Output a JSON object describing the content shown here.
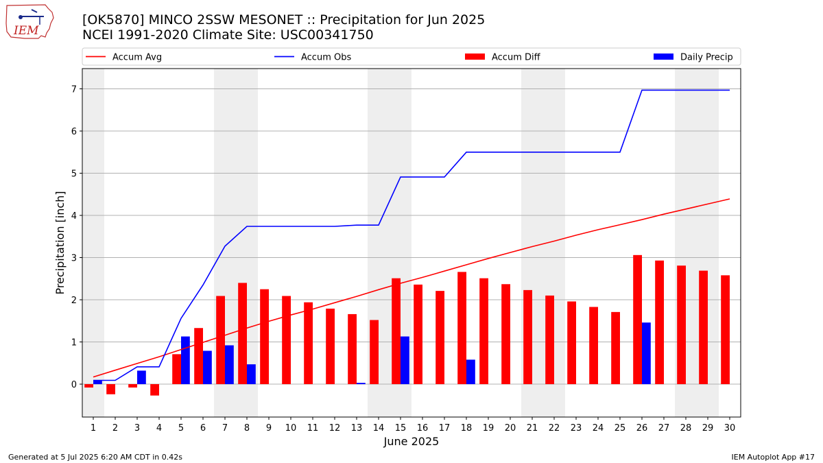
{
  "header": {
    "title_line1": "[OK5870] MINCO 2SSW MESONET :: Precipitation for Jun 2025",
    "title_line2": "NCEI 1991-2020 Climate Site: USC00341750",
    "logo_text": "IEM"
  },
  "footer": {
    "left": "Generated at 5 Jul 2025 6:20 AM CDT in 0.42s",
    "right": "IEM Autoplot App #17"
  },
  "colors": {
    "avg": "#ff0000",
    "obs": "#0000ff",
    "diff": "#ff0000",
    "daily": "#0000ff",
    "weekend_band": "#eeeeee",
    "grid": "#b0b0b0"
  },
  "chart_data": {
    "type": "bar",
    "xlabel": "June 2025",
    "ylabel": "Precipitation [inch]",
    "xlim": [
      0.5,
      30.5
    ],
    "ylim": [
      -0.78,
      7.48
    ],
    "yticks": [
      0,
      1,
      2,
      3,
      4,
      5,
      6,
      7
    ],
    "grid": "horizontal",
    "legend_position": "top",
    "legend": [
      "Accum Avg",
      "Accum Obs",
      "Accum Diff",
      "Daily Precip"
    ],
    "x": [
      1,
      2,
      3,
      4,
      5,
      6,
      7,
      8,
      9,
      10,
      11,
      12,
      13,
      14,
      15,
      16,
      17,
      18,
      19,
      20,
      21,
      22,
      23,
      24,
      25,
      26,
      27,
      28,
      29,
      30
    ],
    "weekend_days": [
      1,
      7,
      8,
      14,
      15,
      21,
      22,
      28,
      29
    ],
    "series": [
      {
        "name": "Accum Avg",
        "kind": "line",
        "values": [
          0.17,
          0.33,
          0.49,
          0.65,
          0.82,
          0.99,
          1.16,
          1.33,
          1.49,
          1.64,
          1.78,
          1.93,
          2.08,
          2.24,
          2.39,
          2.53,
          2.68,
          2.83,
          2.98,
          3.12,
          3.26,
          3.39,
          3.53,
          3.66,
          3.78,
          3.9,
          4.03,
          4.15,
          4.27,
          4.39
        ]
      },
      {
        "name": "Accum Obs",
        "kind": "line",
        "values": [
          0.09,
          0.09,
          0.41,
          0.41,
          1.56,
          2.35,
          3.27,
          3.74,
          3.74,
          3.74,
          3.74,
          3.74,
          3.77,
          3.77,
          4.91,
          4.91,
          4.91,
          5.5,
          5.5,
          5.5,
          5.5,
          5.5,
          5.5,
          5.5,
          5.5,
          6.97,
          6.97,
          6.97,
          6.97,
          6.97
        ]
      },
      {
        "name": "Accum Diff",
        "kind": "bar",
        "values": [
          -0.08,
          -0.24,
          -0.08,
          -0.27,
          0.71,
          1.33,
          2.09,
          2.4,
          2.25,
          2.09,
          1.94,
          1.79,
          1.66,
          1.52,
          2.51,
          2.36,
          2.21,
          2.66,
          2.51,
          2.37,
          2.23,
          2.1,
          1.96,
          1.83,
          1.71,
          3.06,
          2.93,
          2.81,
          2.69,
          2.58
        ]
      },
      {
        "name": "Daily Precip",
        "kind": "bar",
        "values": [
          0.09,
          0.0,
          0.32,
          0.0,
          1.13,
          0.79,
          0.92,
          0.47,
          0.0,
          0.0,
          0.0,
          0.0,
          0.03,
          0.0,
          1.13,
          0.0,
          0.0,
          0.58,
          0.0,
          0.0,
          0.0,
          0.0,
          0.0,
          0.0,
          0.0,
          1.46,
          0.0,
          0.0,
          0.0,
          0.0
        ]
      }
    ]
  }
}
